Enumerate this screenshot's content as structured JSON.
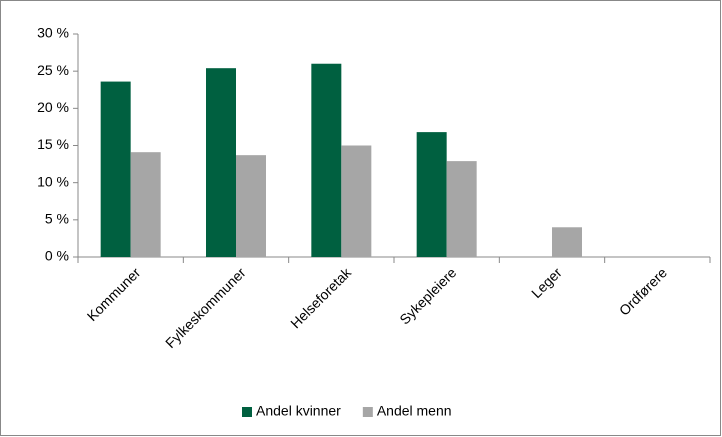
{
  "chart_data": {
    "type": "bar",
    "categories": [
      "Kommuner",
      "Fylkeskommuner",
      "Helseforetak",
      "Sykepleiere",
      "Leger",
      "Ordførere"
    ],
    "series": [
      {
        "name": "Andel kvinner",
        "color": "#006040",
        "values": [
          23.6,
          25.4,
          26.0,
          16.8,
          null,
          null
        ]
      },
      {
        "name": "Andel menn",
        "color": "#a6a6a6",
        "values": [
          14.1,
          13.7,
          15.0,
          12.9,
          4.0,
          null
        ]
      }
    ],
    "ylim": [
      0,
      30
    ],
    "yticks": [
      {
        "value": 0,
        "label": "0 %"
      },
      {
        "value": 5,
        "label": "5 %"
      },
      {
        "value": 10,
        "label": "10 %"
      },
      {
        "value": 15,
        "label": "15 %"
      },
      {
        "value": 20,
        "label": "20 %"
      },
      {
        "value": 25,
        "label": "25 %"
      },
      {
        "value": 30,
        "label": "30 %"
      }
    ],
    "grid": false,
    "legend": "bottom"
  }
}
